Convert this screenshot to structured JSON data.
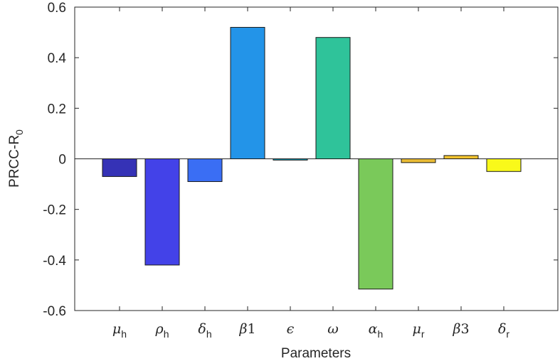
{
  "chart_data": {
    "type": "bar",
    "xlabel": "Parameters",
    "ylabel": {
      "main": "PRCC-R",
      "sub": "0"
    },
    "ylim": [
      -0.6,
      0.6
    ],
    "yticks": [
      0.6,
      0.4,
      0.2,
      0,
      -0.2,
      -0.4,
      -0.6
    ],
    "ytick_labels": [
      "0.6",
      "0.4",
      "0.2",
      "0",
      "-0.2",
      "-0.4",
      "-0.6"
    ],
    "categories": [
      {
        "symbol": "μ",
        "sub": "h"
      },
      {
        "symbol": "ρ",
        "sub": "h"
      },
      {
        "symbol": "δ",
        "sub": "h"
      },
      {
        "symbol": "β",
        "num": "1"
      },
      {
        "symbol": "ϵ"
      },
      {
        "symbol": "ω"
      },
      {
        "symbol": "α",
        "sub": "h"
      },
      {
        "symbol": "μ",
        "sub": "r"
      },
      {
        "symbol": "β",
        "num": "3"
      },
      {
        "symbol": "δ",
        "sub": "r"
      }
    ],
    "values": [
      -0.07,
      -0.42,
      -0.09,
      0.52,
      -0.005,
      0.48,
      -0.515,
      -0.015,
      0.013,
      -0.05
    ],
    "colors": [
      "#3532b6",
      "#4342e8",
      "#3a6ef4",
      "#2394e8",
      "#14a8c4",
      "#2fc39a",
      "#7ac95a",
      "#e8ba35",
      "#f2c22e",
      "#f9f91a"
    ],
    "grid": false,
    "legend": "none"
  }
}
